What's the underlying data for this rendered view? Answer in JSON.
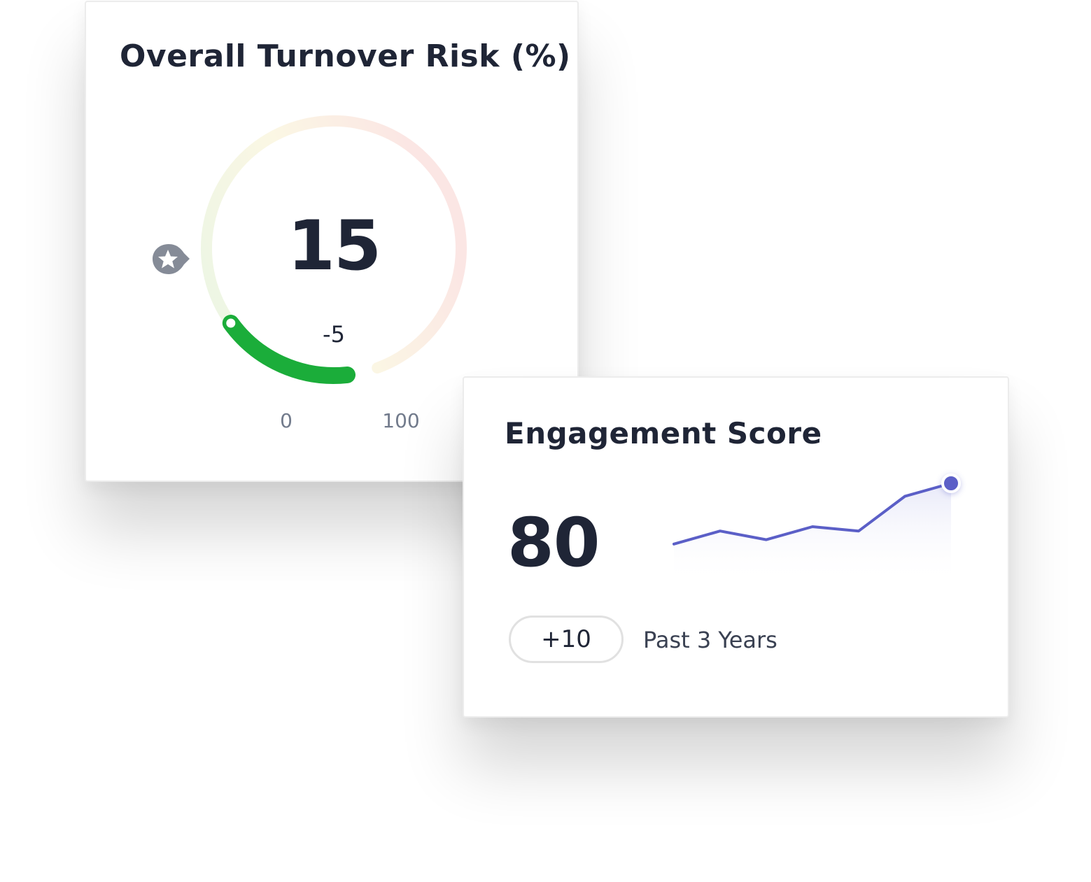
{
  "turnover_risk": {
    "title": "Overall Turnover Risk (%)",
    "value": "15",
    "change": "-5",
    "scale_min_label": "0",
    "scale_max_label": "100",
    "benchmark_icon": "star-marker-icon",
    "colors": {
      "value_arc": "#1bad3a",
      "track_start": "#eaf5e4",
      "track_mid": "#fbf7e4",
      "track_end": "#fbe6e4",
      "icon": "#858b97"
    }
  },
  "engagement": {
    "title": "Engagement Score",
    "value": "80",
    "change_badge": "+10",
    "period": "Past 3 Years",
    "colors": {
      "line": "#5b5fc7",
      "area": "#e7e8f8"
    }
  },
  "chart_data": [
    {
      "type": "gauge",
      "title": "Overall Turnover Risk (%)",
      "value": 15,
      "change": -5,
      "range": [
        0,
        100
      ]
    },
    {
      "type": "line",
      "title": "Engagement Score",
      "x": [
        1,
        2,
        3,
        4,
        5,
        6,
        7
      ],
      "values": [
        66,
        69,
        67,
        70,
        69,
        77,
        80
      ],
      "ylim": [
        60,
        85
      ],
      "grid": false
    }
  ]
}
